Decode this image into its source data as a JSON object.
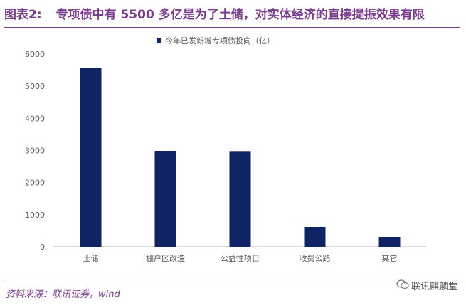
{
  "header": {
    "figure_label": "图表2:",
    "figure_title": "专项债中有 5500 多亿是为了土储，对实体经济的直接提振效果有限"
  },
  "footer": {
    "source": "资料来源：联讯证券，wind",
    "watermark": "联讯麒麟堂",
    "watermark_icon": "wechat-icon"
  },
  "colors": {
    "bar": "#0f2464",
    "accent": "#7a3b8f"
  },
  "chart_data": {
    "type": "bar",
    "categories": [
      "土储",
      "棚户区改造",
      "公益性项目",
      "收费公路",
      "其它"
    ],
    "series": [
      {
        "name": "今年已发新增专项债投向（亿）",
        "values": [
          5560,
          2980,
          2960,
          620,
          300
        ]
      }
    ],
    "yticks": [
      0,
      1000,
      2000,
      3000,
      4000,
      5000,
      6000
    ],
    "ylim": [
      0,
      6000
    ],
    "legend_position": "top-center",
    "grid": false
  }
}
